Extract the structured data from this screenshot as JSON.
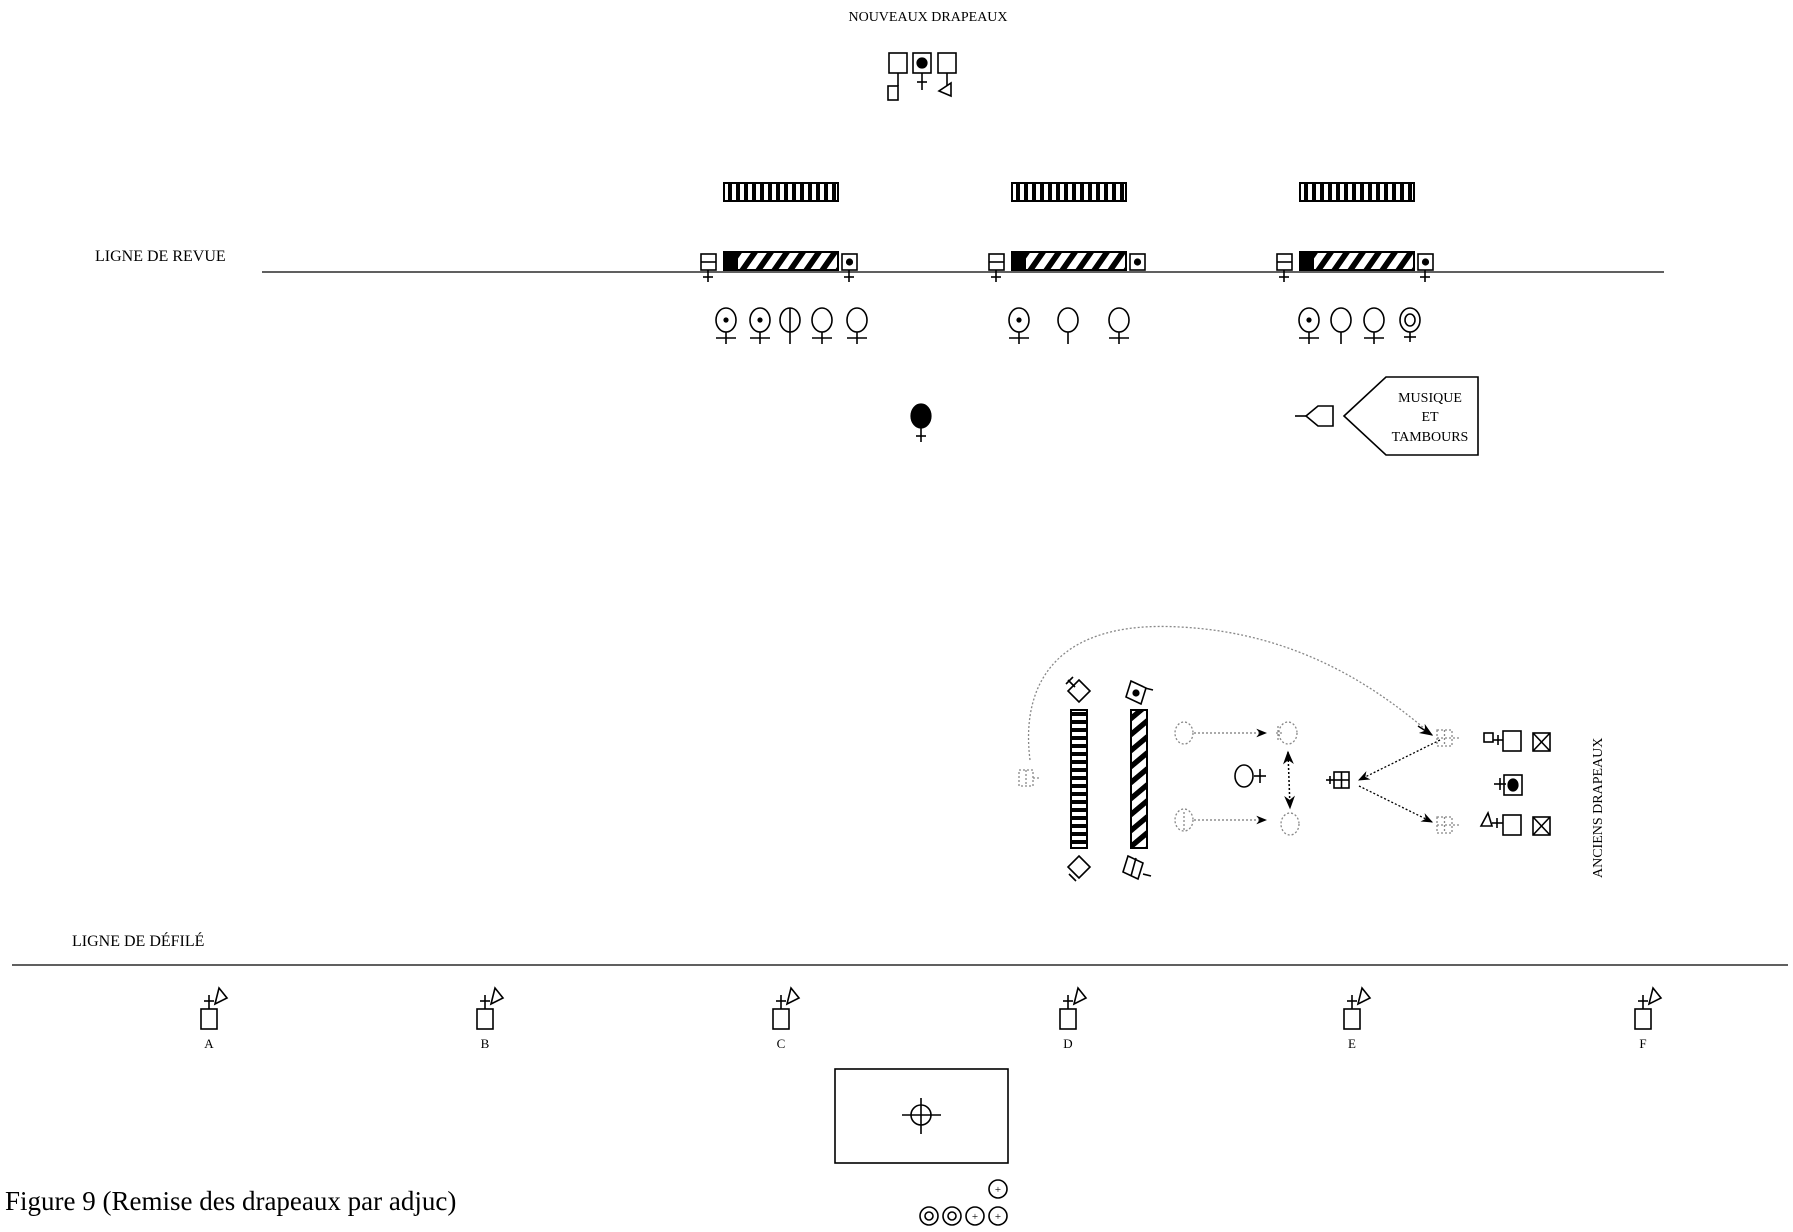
{
  "labels": {
    "new_flags": "NOUVEAUX DRAPEAUX",
    "review_line": "LIGNE DE REVUE",
    "parade_line": "LIGNE DE DÉFILÉ",
    "old_flags": "ANCIENS DRAPEAUX",
    "band_line1": "MUSIQUE",
    "band_line2": "ET",
    "band_line3": "TAMBOURS",
    "caption": "Figure 9 (Remise des drapeaux par adjuc)"
  },
  "parade_markers": [
    "A",
    "B",
    "C",
    "D",
    "E",
    "F"
  ]
}
